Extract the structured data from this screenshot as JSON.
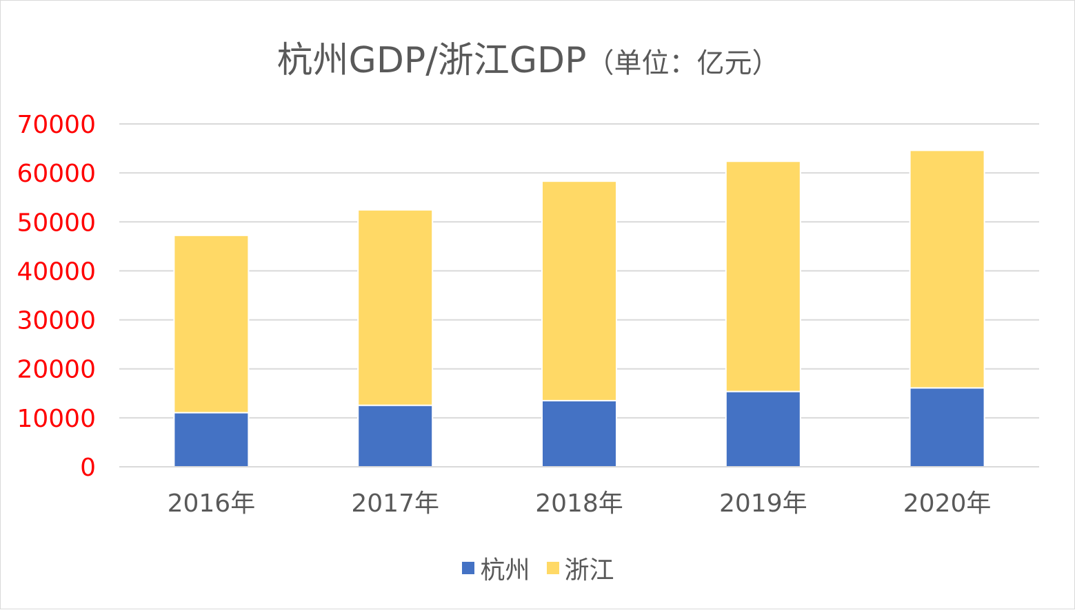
{
  "chart_data": {
    "type": "bar",
    "stacked": true,
    "title": "杭州GDP/浙江GDP",
    "title_unit": "（单位：亿元）",
    "categories": [
      "2016年",
      "2017年",
      "2018年",
      "2019年",
      "2020年"
    ],
    "series": [
      {
        "name": "杭州",
        "values": [
          11050,
          12556,
          13509,
          15373,
          16106
        ],
        "color": "#4472c4"
      },
      {
        "name": "浙江",
        "values": [
          36200,
          39900,
          44800,
          47000,
          48500
        ],
        "color": "#ffd966"
      }
    ],
    "ylim": [
      0,
      70000
    ],
    "yticks": [
      "0",
      "10000",
      "20000",
      "30000",
      "40000",
      "50000",
      "60000",
      "70000"
    ],
    "ytick_color": "#ff0000",
    "grid": true,
    "legend": "bottom"
  }
}
